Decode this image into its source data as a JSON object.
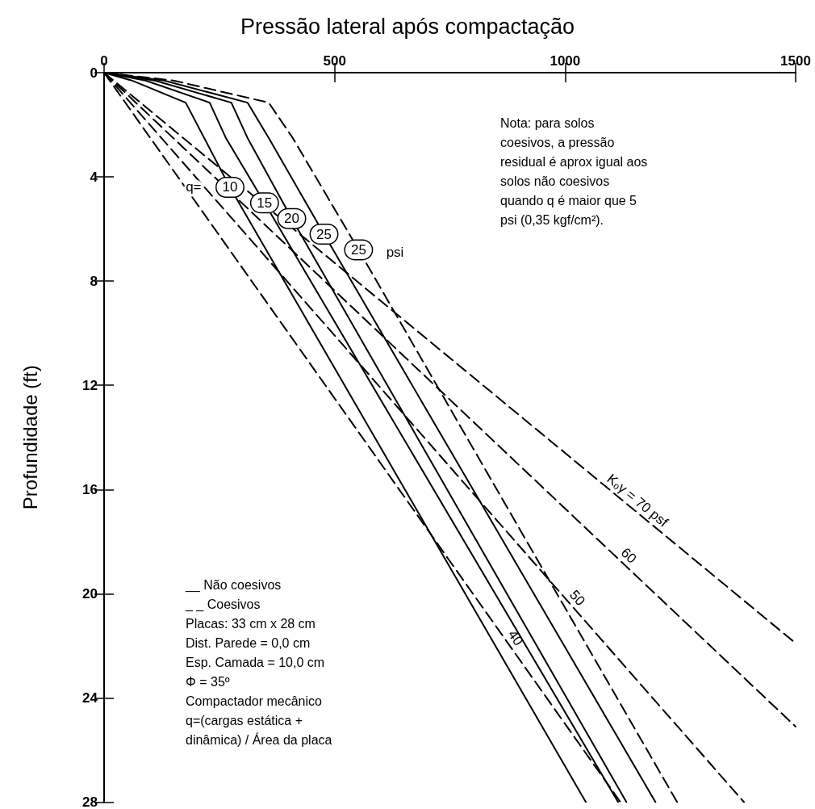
{
  "chart_data": {
    "type": "line",
    "title": "Pressão lateral após compactação",
    "ylabel": "Profundidade (ft)",
    "xlim": [
      0,
      1500
    ],
    "xticks": [
      0,
      500,
      1000,
      1500
    ],
    "ylim": [
      28,
      0
    ],
    "yticks": [
      0,
      4,
      8,
      12,
      16,
      20,
      24,
      28
    ],
    "grid": false,
    "marker": "none",
    "series": [
      {
        "color": "#000000",
        "line_style": "solid",
        "x": [
          0,
          60,
          177,
          217,
          273,
          1045
        ],
        "values": [
          0,
          0.3,
          1.15,
          2.5,
          4.4,
          28
        ]
      },
      {
        "color": "#000000",
        "line_style": "solid",
        "x": [
          0,
          90,
          229,
          264,
          348,
          1115
        ],
        "values": [
          0,
          0.3,
          1.15,
          2.5,
          5.0,
          28
        ]
      },
      {
        "color": "#000000",
        "line_style": "solid",
        "x": [
          0,
          110,
          276,
          311,
          407,
          1133
        ],
        "values": [
          0,
          0.3,
          1.15,
          2.5,
          5.6,
          28
        ]
      },
      {
        "color": "#000000",
        "line_style": "solid",
        "x": [
          0,
          130,
          311,
          357,
          477,
          1196
        ],
        "values": [
          0,
          0.3,
          1.15,
          2.5,
          6.2,
          28
        ]
      },
      {
        "color": "#000000",
        "line_style": "dashed",
        "x": [
          0,
          150,
          357,
          409,
          552,
          1243
        ],
        "values": [
          0,
          0.3,
          1.15,
          2.5,
          6.8,
          28
        ]
      },
      {
        "color": "#000000",
        "line_style": "dashed",
        "x": [
          0,
          1500
        ],
        "values": [
          0,
          21.9
        ]
      },
      {
        "color": "#000000",
        "line_style": "dashed",
        "x": [
          0,
          1500
        ],
        "values": [
          0,
          25.1
        ]
      },
      {
        "color": "#000000",
        "line_style": "dashed",
        "x": [
          0,
          1388
        ],
        "values": [
          0,
          28
        ]
      },
      {
        "color": "#000000",
        "line_style": "dashed",
        "x": [
          0,
          1120
        ],
        "values": [
          0,
          28
        ]
      }
    ],
    "annotations": [
      "Nota: para solos\ncoesivos, a pressão\nresidual é aprox igual aos\nsolos não coesivos\nquando q é maior que 5\npsi (0,35 kgf/cm²).",
      "__ Não coesivos\n_ _ Coesivos\nPlacas: 33 cm x 28 cm\nDist. Parede = 0,0 cm\nEsp. Camada = 10,0 cm\nΦ = 35º\nCompactador mecânico\nq=(cargas estática +\ndinâmica) / Área da placa",
      {
        "text": "q=",
        "x": 194,
        "y": 4.4
      },
      {
        "text": "10",
        "x": 273,
        "y": 4.4
      },
      {
        "text": "15",
        "x": 348,
        "y": 5.0
      },
      {
        "text": "20",
        "x": 407,
        "y": 5.6
      },
      {
        "text": "25",
        "x": 477,
        "y": 6.2
      },
      {
        "text": "25",
        "x": 552,
        "y": 6.8
      },
      {
        "text": "psi",
        "x": 631,
        "y": 6.9
      },
      {
        "text": "Kₒγ = 70 psf",
        "x": 1144,
        "y": 16.7
      },
      {
        "text": "60",
        "x": 1124,
        "y": 18.8
      },
      {
        "text": "50",
        "x": 1011,
        "y": 20.4
      },
      {
        "text": "40",
        "x": 876,
        "y": 21.9
      }
    ]
  }
}
